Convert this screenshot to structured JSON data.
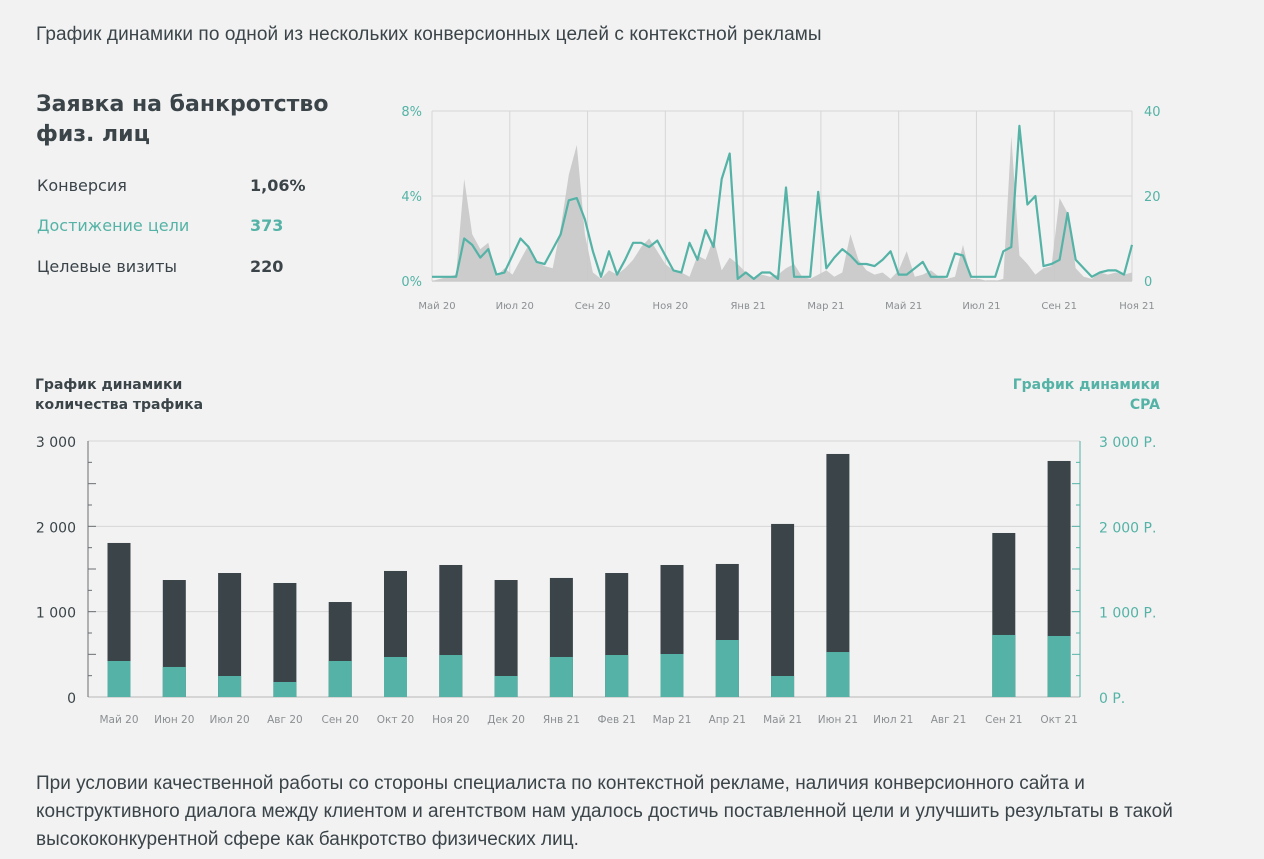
{
  "page": {
    "title": "График динамики по одной из нескольких конверсионных целей с контекстной рекламы",
    "footer_text": "При условии качественной работы со стороны специалиста по контекстной рекламе, наличия конверсионного сайта и конструктивного диалога между клиентом и агентством нам удалось достичь поставленной цели и улучшить результаты в такой высококонкурентной сфере как банкротство физических лиц."
  },
  "goal": {
    "title": "Заявка на банкротство физ. лиц",
    "metrics": [
      {
        "label": "Конверсия",
        "value": "1,06%"
      },
      {
        "label": "Достижение цели",
        "value": "373"
      },
      {
        "label": "Целевые визиты",
        "value": "220"
      }
    ]
  },
  "colors": {
    "teal": "#54b3a6",
    "dark": "#3a4449",
    "grey_area": "#c9c9c9",
    "grid": "#d6d6d6",
    "background": "#f2f2f2"
  },
  "chart_data": [
    {
      "type": "line",
      "title": "",
      "x_tick_labels": [
        "Май 20",
        "Июл 20",
        "Сен 20",
        "Ноя 20",
        "Янв 21",
        "Мар 21",
        "Май 21",
        "Июл 21",
        "Сен 21",
        "Ноя 21"
      ],
      "y_left": {
        "label": "Конверсия",
        "ticks": [
          "0%",
          "4%",
          "8%"
        ],
        "range": [
          0,
          8
        ]
      },
      "y_right": {
        "label": "Достижение цели",
        "ticks": [
          "0",
          "20",
          "40"
        ],
        "range": [
          0,
          40
        ]
      },
      "grid": true,
      "series": [
        {
          "name": "Конверсия, %",
          "kind": "area",
          "axis": "left",
          "values": [
            0,
            0.1,
            0.2,
            0.3,
            4.8,
            2.2,
            1.5,
            1.8,
            0.2,
            0.6,
            0.3,
            1.0,
            1.7,
            0.9,
            0.7,
            0.6,
            2.5,
            5.0,
            6.4,
            2.2,
            0.4,
            0.1,
            0.5,
            0.3,
            0.6,
            1.0,
            1.6,
            2.0,
            1.4,
            0.8,
            0.5,
            0.4,
            0.2,
            1.2,
            1.0,
            2.0,
            0.5,
            1.1,
            0.8,
            0.4,
            0.1,
            0.3,
            0.2,
            0.3,
            0.6,
            0.8,
            0.2,
            0.1,
            0.3,
            0.5,
            0.2,
            0.4,
            2.2,
            1.0,
            0.5,
            0.3,
            0.4,
            0.1,
            0.5,
            1.4,
            0.2,
            0.3,
            0.5,
            0.2,
            0.1,
            0.2,
            1.7,
            0.1,
            0.1,
            0.0,
            0.0,
            0.1,
            6.8,
            1.2,
            0.8,
            0.3,
            0.6,
            0.7,
            3.9,
            3.2,
            0.6,
            0.2,
            0.1,
            0.4,
            0.3,
            0.4,
            0.3,
            0.4
          ],
          "color": "#c9c9c9"
        },
        {
          "name": "Достижение цели",
          "kind": "line",
          "axis": "right",
          "values": [
            1,
            1,
            1,
            1,
            10,
            8.5,
            5.5,
            7.5,
            1.5,
            2,
            6,
            10,
            8,
            4.5,
            4,
            7.5,
            11,
            19,
            19.5,
            14.5,
            7,
            1,
            7,
            1.5,
            5,
            9,
            9,
            8,
            9.5,
            6,
            2.5,
            2,
            9,
            5,
            12,
            8,
            24,
            30,
            0.5,
            2,
            0.5,
            2,
            2,
            0.5,
            22,
            1,
            1,
            1,
            21,
            3,
            5.5,
            7.5,
            6,
            4,
            4,
            3.5,
            5,
            7,
            1.5,
            1.5,
            3,
            4.5,
            1,
            1,
            1,
            6.5,
            6,
            1,
            1,
            1,
            1,
            7,
            8,
            36.5,
            18,
            20,
            3.5,
            4,
            5,
            16,
            5,
            3,
            1,
            2,
            2.5,
            2.5,
            1.5,
            8.5
          ],
          "color": "#54b3a6"
        }
      ]
    },
    {
      "type": "bar",
      "title_left": "График динамики количества трафика",
      "title_right": "График динамики CPA",
      "categories": [
        "Май 20",
        "Июн 20",
        "Июл 20",
        "Авг 20",
        "Сен 20",
        "Окт 20",
        "Ноя 20",
        "Дек 20",
        "Янв 21",
        "Фев 21",
        "Мар 21",
        "Апр 21",
        "Май 21",
        "Июн 21",
        "Июл 21",
        "Авг 21",
        "Сен 21",
        "Окт 21"
      ],
      "y_left": {
        "ticks": [
          "0",
          "1 000",
          "2 000",
          "3 000"
        ],
        "range": [
          0,
          3000
        ]
      },
      "y_right": {
        "ticks": [
          "0 Р.",
          "1 000 Р.",
          "2 000 Р.",
          "3 000 Р."
        ],
        "range": [
          0,
          3000
        ]
      },
      "grid": true,
      "series": [
        {
          "name": "Трафик",
          "color": "#3a4449",
          "values": [
            1805,
            1371,
            1453,
            1336,
            1113,
            1477,
            1547,
            1371,
            1395,
            1453,
            1547,
            1559,
            2028,
            2848,
            0,
            0,
            1922,
            2766
          ]
        },
        {
          "name": "CPA",
          "color": "#54b3a6",
          "values": [
            422,
            352,
            246,
            176,
            422,
            469,
            492,
            246,
            469,
            492,
            504,
            668,
            246,
            527,
            0,
            0,
            727,
            715
          ]
        }
      ]
    }
  ]
}
